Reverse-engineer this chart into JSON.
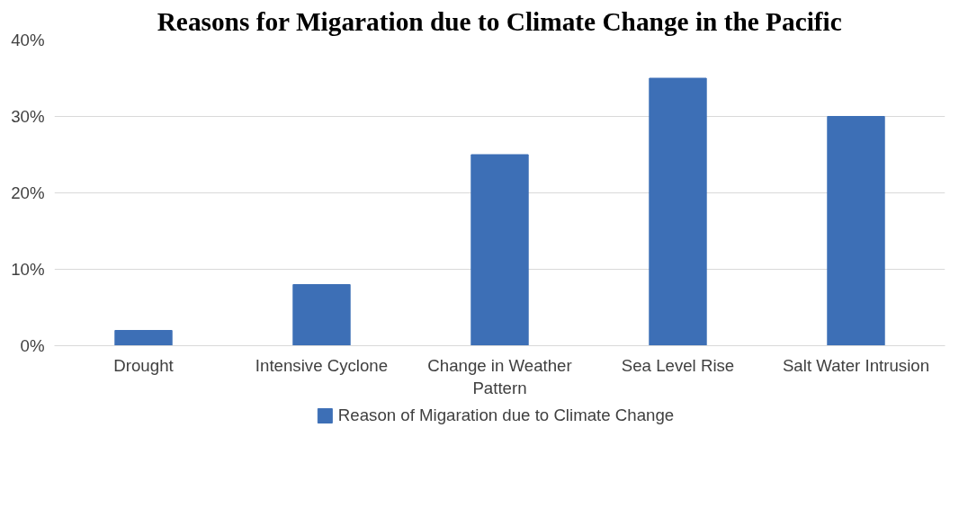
{
  "chart_data": {
    "type": "bar",
    "title": "Reasons for Migaration due to Climate Change in the Pacific",
    "categories": [
      "Drought",
      "Intensive Cyclone",
      "Change in Weather Pattern",
      "Sea Level Rise",
      "Salt Water Intrusion"
    ],
    "series": [
      {
        "name": "Reason of Migaration due to Climate Change",
        "color": "#3d6fb6",
        "values": [
          2,
          8,
          25,
          35,
          30
        ]
      }
    ],
    "ylim": [
      0,
      40
    ],
    "yticks": [
      {
        "value": 0,
        "label": "0%"
      },
      {
        "value": 10,
        "label": "10%"
      },
      {
        "value": 20,
        "label": "20%"
      },
      {
        "value": 30,
        "label": "30%"
      },
      {
        "value": 40,
        "label": "40%"
      }
    ],
    "grid": "y",
    "legend": "bottom"
  }
}
